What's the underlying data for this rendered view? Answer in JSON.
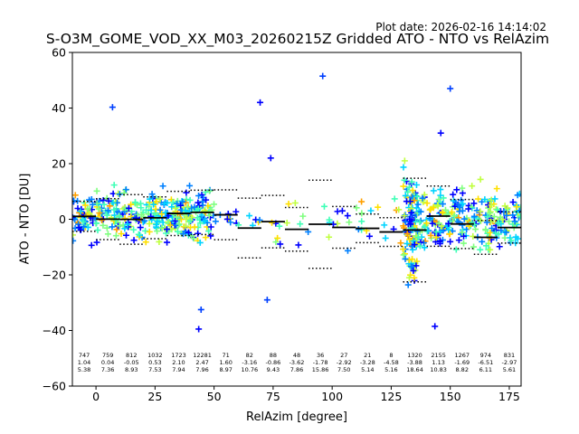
{
  "header": {
    "plot_date": "Plot date: 2026-02-16 14:14:02",
    "title": "S-O3M_GOME_VOD_XX_M03_20260215Z Gridded ATO - NTO vs RelAzim"
  },
  "chart_data": {
    "type": "scatter",
    "title": "S-O3M_GOME_VOD_XX_M03_20260215Z Gridded ATO - NTO vs RelAzim",
    "xlabel": "RelAzim [degree]",
    "ylabel": "ATO - NTO [DU]",
    "xlim": [
      -10,
      180
    ],
    "ylim": [
      -60,
      60
    ],
    "xticks": [
      0,
      25,
      50,
      75,
      100,
      125,
      150,
      175
    ],
    "yticks": [
      -60,
      -40,
      -20,
      0,
      20,
      40,
      60
    ],
    "grid": false,
    "marker": "plus",
    "colors": [
      "#0000ff",
      "#0080ff",
      "#00d4ff",
      "#40ffb7",
      "#80ff80",
      "#c0ff40",
      "#ffe000",
      "#ffa000"
    ],
    "bins": [
      {
        "x": -5,
        "count": "747",
        "mean": "1.04",
        "std": "5.38"
      },
      {
        "x": 5,
        "count": "759",
        "mean": "0.04",
        "std": "7.36"
      },
      {
        "x": 15,
        "count": "812",
        "mean": "-0.05",
        "std": "8.93"
      },
      {
        "x": 25,
        "count": "1032",
        "mean": "0.53",
        "std": "7.53"
      },
      {
        "x": 35,
        "count": "1723",
        "mean": "2.10",
        "std": "7.94"
      },
      {
        "x": 45,
        "count": "12281",
        "mean": "2.47",
        "std": "7.96"
      },
      {
        "x": 55,
        "count": "71",
        "mean": "1.60",
        "std": "8.97"
      },
      {
        "x": 65,
        "count": "82",
        "mean": "-3.16",
        "std": "10.76"
      },
      {
        "x": 75,
        "count": "88",
        "mean": "-0.86",
        "std": "9.43"
      },
      {
        "x": 85,
        "count": "48",
        "mean": "-3.62",
        "std": "7.86"
      },
      {
        "x": 95,
        "count": "36",
        "mean": "-1.78",
        "std": "15.86"
      },
      {
        "x": 105,
        "count": "27",
        "mean": "-2.92",
        "std": "7.50"
      },
      {
        "x": 115,
        "count": "21",
        "mean": "-3.28",
        "std": "5.14"
      },
      {
        "x": 125,
        "count": "8",
        "mean": "-4.58",
        "std": "5.16"
      },
      {
        "x": 135,
        "count": "1320",
        "mean": "-3.88",
        "std": "18.64"
      },
      {
        "x": 145,
        "count": "2155",
        "mean": "1.13",
        "std": "10.83"
      },
      {
        "x": 155,
        "count": "1267",
        "mean": "-1.69",
        "std": "8.82"
      },
      {
        "x": 165,
        "count": "974",
        "mean": "-6.51",
        "std": "6.11"
      },
      {
        "x": 175,
        "count": "831",
        "mean": "-2.97",
        "std": "5.61"
      }
    ],
    "scatter_regions": [
      {
        "x": [
          -10,
          50
        ],
        "center": 1.5,
        "spread": 8,
        "density": "high"
      },
      {
        "x": [
          50,
          130
        ],
        "center": -2,
        "spread": 8,
        "density": "low"
      },
      {
        "x": [
          130,
          136
        ],
        "center": -3,
        "spread": 20,
        "density": "high"
      },
      {
        "x": [
          136,
          180
        ],
        "center": 0,
        "spread": 9,
        "density": "high"
      }
    ],
    "outliers": [
      {
        "x": 7,
        "y": 40.3
      },
      {
        "x": 69.5,
        "y": 42
      },
      {
        "x": 96,
        "y": 51.5
      },
      {
        "x": 74,
        "y": 22
      },
      {
        "x": 72.5,
        "y": -29
      },
      {
        "x": 143.5,
        "y": -38.5
      },
      {
        "x": 44.5,
        "y": -32.5
      },
      {
        "x": 146,
        "y": 31
      },
      {
        "x": 150,
        "y": 47
      },
      {
        "x": 43.5,
        "y": -39.5
      }
    ]
  }
}
